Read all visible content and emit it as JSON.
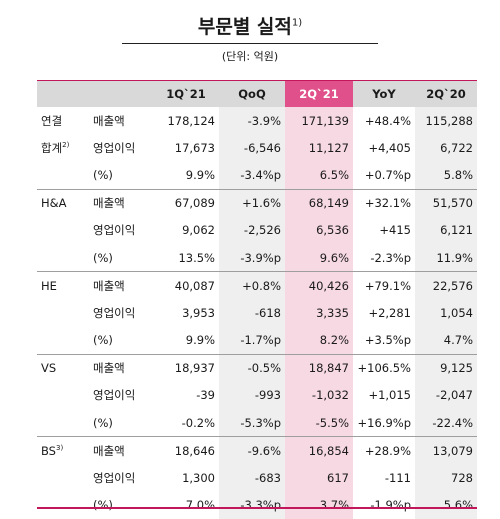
{
  "title": "부문별 실적",
  "title_footnote": "1)",
  "unit": "(단위: 억원)",
  "colors": {
    "accent": "#c2185b",
    "highlight_header": "#e0508a",
    "highlight_cell": "#f7d9e3",
    "header_bg": "#d9d9d9",
    "shade": "#efefef"
  },
  "columns": [
    "1Q`21",
    "QoQ",
    "2Q`21",
    "YoY",
    "2Q`20"
  ],
  "segments": [
    {
      "name": "연결",
      "name2": "합계",
      "name2_note": "2)",
      "rows": [
        {
          "metric": "매출액",
          "values": [
            "178,124",
            "-3.9%",
            "171,139",
            "+48.4%",
            "115,288"
          ]
        },
        {
          "metric": "영업이익",
          "values": [
            "17,673",
            "-6,546",
            "11,127",
            "+4,405",
            "6,722"
          ]
        },
        {
          "metric": "(%)",
          "values": [
            "9.9%",
            "-3.4%p",
            "6.5%",
            "+0.7%p",
            "5.8%"
          ]
        }
      ]
    },
    {
      "name": "H&A",
      "name_note": "",
      "rows": [
        {
          "metric": "매출액",
          "values": [
            "67,089",
            "+1.6%",
            "68,149",
            "+32.1%",
            "51,570"
          ]
        },
        {
          "metric": "영업이익",
          "values": [
            "9,062",
            "-2,526",
            "6,536",
            "+415",
            "6,121"
          ]
        },
        {
          "metric": "(%)",
          "values": [
            "13.5%",
            "-3.9%p",
            "9.6%",
            "-2.3%p",
            "11.9%"
          ]
        }
      ]
    },
    {
      "name": "HE",
      "name_note": "",
      "rows": [
        {
          "metric": "매출액",
          "values": [
            "40,087",
            "+0.8%",
            "40,426",
            "+79.1%",
            "22,576"
          ]
        },
        {
          "metric": "영업이익",
          "values": [
            "3,953",
            "-618",
            "3,335",
            "+2,281",
            "1,054"
          ]
        },
        {
          "metric": "(%)",
          "values": [
            "9.9%",
            "-1.7%p",
            "8.2%",
            "+3.5%p",
            "4.7%"
          ]
        }
      ]
    },
    {
      "name": "VS",
      "name_note": "",
      "rows": [
        {
          "metric": "매출액",
          "values": [
            "18,937",
            "-0.5%",
            "18,847",
            "+106.5%",
            "9,125"
          ]
        },
        {
          "metric": "영업이익",
          "values": [
            "-39",
            "-993",
            "-1,032",
            "+1,015",
            "-2,047"
          ]
        },
        {
          "metric": "(%)",
          "values": [
            "-0.2%",
            "-5.3%p",
            "-5.5%",
            "+16.9%p",
            "-22.4%"
          ]
        }
      ]
    },
    {
      "name": "BS",
      "name_note": "3)",
      "rows": [
        {
          "metric": "매출액",
          "values": [
            "18,646",
            "-9.6%",
            "16,854",
            "+28.9%",
            "13,079"
          ]
        },
        {
          "metric": "영업이익",
          "values": [
            "1,300",
            "-683",
            "617",
            "-111",
            "728"
          ]
        },
        {
          "metric": "(%)",
          "values": [
            "7.0%",
            "-3.3%p",
            "3.7%",
            "-1.9%p",
            "5.6%"
          ]
        }
      ]
    }
  ]
}
